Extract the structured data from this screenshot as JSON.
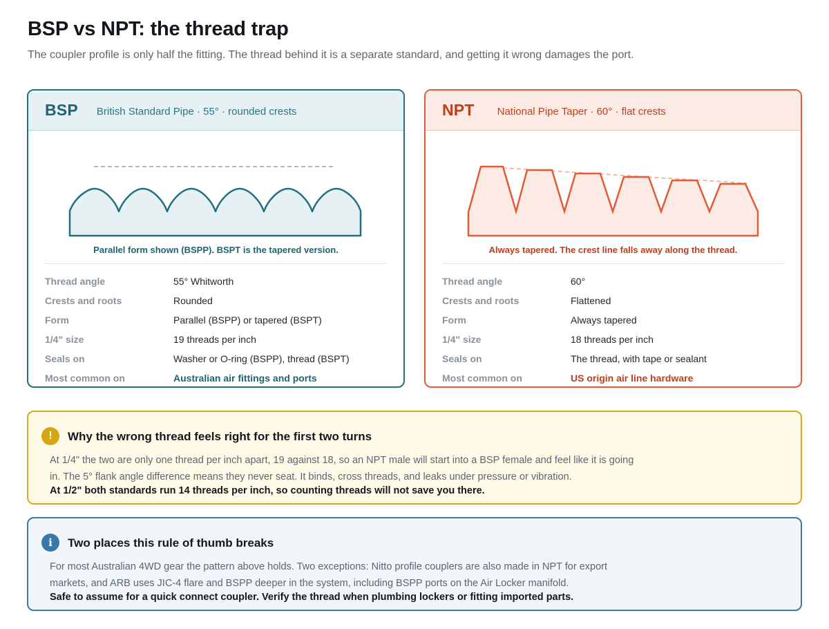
{
  "header": {
    "title": "BSP vs NPT: the thread trap",
    "subtitle": "The coupler profile is only half the fitting. The thread behind it is a separate standard, and getting it wrong damages the port."
  },
  "bsp": {
    "abbr": "BSP",
    "description": "British Standard Pipe · 55° · rounded crests",
    "caption": "Parallel form shown (BSPP). BSPT is the tapered version.",
    "color": "#226f80",
    "fill": "#e6f1f3",
    "specs": [
      {
        "label": "Thread angle",
        "value": "55° Whitworth"
      },
      {
        "label": "Crests and roots",
        "value": "Rounded"
      },
      {
        "label": "Form",
        "value": "Parallel (BSPP) or tapered (BSPT)"
      },
      {
        "label": "1/4\" size",
        "value": "19 threads per inch"
      },
      {
        "label": "Seals on",
        "value": "Washer or O-ring (BSPP), thread (BSPT)"
      },
      {
        "label": "Most common on",
        "value": "Australian air fittings and ports"
      }
    ]
  },
  "npt": {
    "abbr": "NPT",
    "description": "National Pipe Taper · 60° · flat crests",
    "caption": "Always tapered. The crest line falls away along the thread.",
    "color": "#e45a35",
    "fill": "#fceae4",
    "specs": [
      {
        "label": "Thread angle",
        "value": "60°"
      },
      {
        "label": "Crests and roots",
        "value": "Flattened"
      },
      {
        "label": "Form",
        "value": "Always tapered"
      },
      {
        "label": "1/4\" size",
        "value": "18 threads per inch"
      },
      {
        "label": "Seals on",
        "value": "The thread, with tape or sealant"
      },
      {
        "label": "Most common on",
        "value": "US origin air line hardware"
      }
    ]
  },
  "warning": {
    "icon": "!",
    "title": "Why the wrong thread feels right for the first two turns",
    "body": "At 1/4\" the two are only one thread per inch apart, 19 against 18, so an NPT male will start into a BSP female and feel like it is going in. The 5° flank angle difference means they never seat. It binds, cross threads, and leaks under pressure or vibration.",
    "emphasis": "At 1/2\" both standards run 14 threads per inch, so counting threads will not save you there."
  },
  "info": {
    "icon": "i",
    "title": "Two places this rule of thumb breaks",
    "body": "For most Australian 4WD gear the pattern above holds. Two exceptions: Nitto profile couplers are also made in NPT for export markets, and ARB uses JIC-4 flare and BSPP deeper in the system, including BSPP ports on the Air Locker manifold.",
    "emphasis": "Safe to assume for a quick connect coupler. Verify the thread when plumbing lockers or fitting imported parts."
  }
}
